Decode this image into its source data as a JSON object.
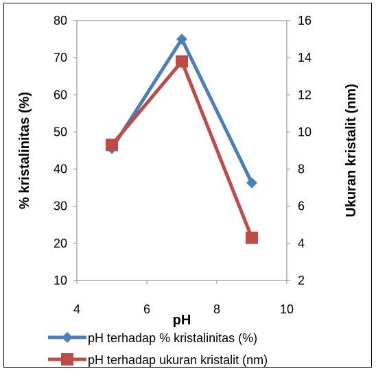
{
  "chart_data": {
    "type": "line",
    "xlabel": "pH",
    "ylabel_left": "% kristalinitas (%)",
    "ylabel_right": "Ukuran kristalit (nm)",
    "xlim": [
      4,
      10
    ],
    "ylim_left": [
      10,
      80
    ],
    "ylim_right": [
      2,
      16
    ],
    "x_ticks": [
      "4",
      "6",
      "8",
      "10"
    ],
    "y_left_ticks": [
      "10",
      "20",
      "30",
      "40",
      "50",
      "60",
      "70",
      "80"
    ],
    "y_right_ticks": [
      "2",
      "4",
      "6",
      "8",
      "10",
      "12",
      "14",
      "16"
    ],
    "grid": false,
    "legend_position": "bottom",
    "series": [
      {
        "name": "pH terhadap % kristalinitas (%)",
        "axis": "left",
        "color": "#4A7EBB",
        "marker": "diamond",
        "x": [
          5,
          7,
          9
        ],
        "values": [
          45.5,
          75,
          36.3
        ]
      },
      {
        "name": "pH terhadap ukuran kristalit (nm)",
        "axis": "right",
        "color": "#BE4B48",
        "marker": "square",
        "x": [
          5,
          7,
          9
        ],
        "values": [
          9.3,
          13.8,
          4.3
        ]
      }
    ]
  }
}
